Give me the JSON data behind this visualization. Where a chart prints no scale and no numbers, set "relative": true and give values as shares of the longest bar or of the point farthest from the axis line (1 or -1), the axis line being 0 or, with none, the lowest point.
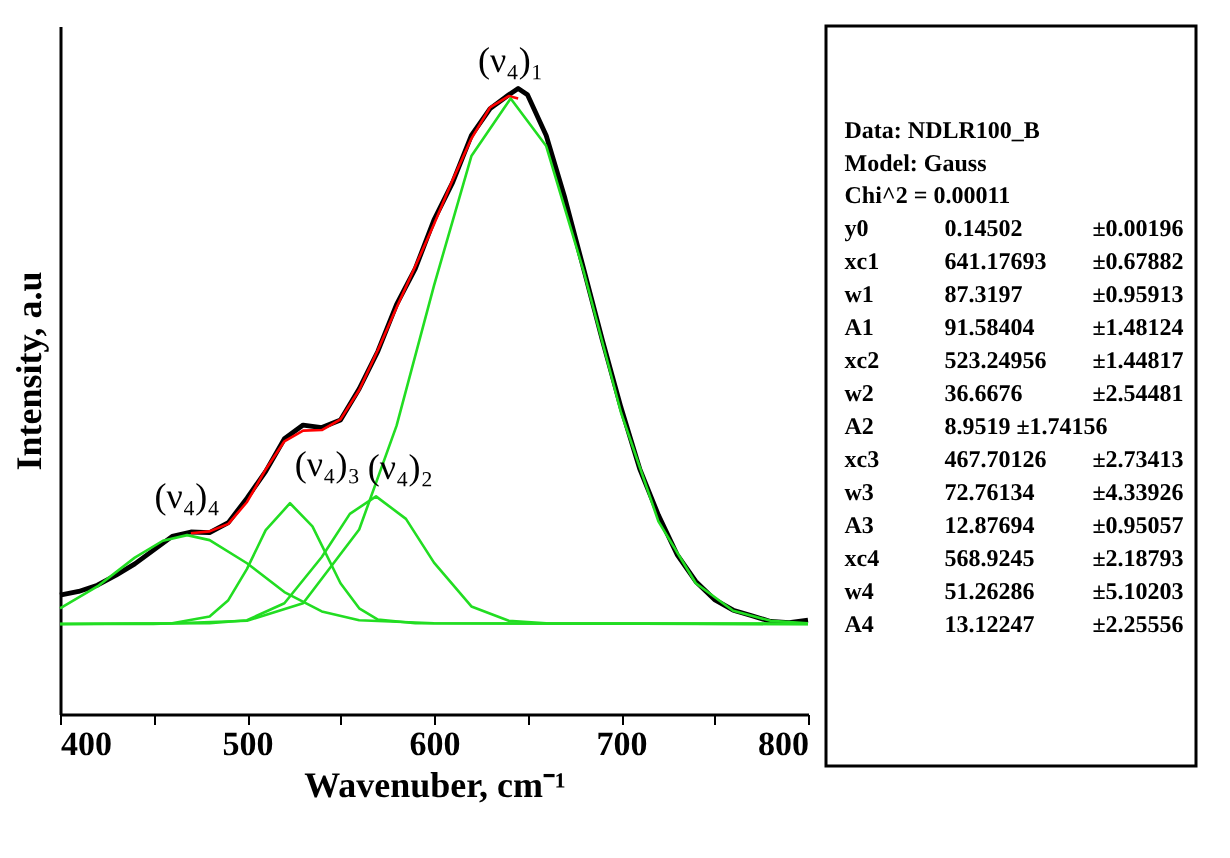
{
  "chart_data": {
    "type": "line",
    "relative": true,
    "xlabel": "Wavenuber, cm⁻¹",
    "ylabel": "Intensity, a.u",
    "grid": false,
    "marker": "none",
    "line_style": "solid",
    "xlim": [
      400,
      800
    ],
    "xticks": [
      400,
      {
        "value": 450,
        "label": null
      },
      500,
      {
        "value": 550,
        "label": null
      },
      600,
      {
        "value": 650,
        "label": null
      },
      700,
      {
        "value": 750,
        "label": null
      },
      800
    ],
    "series": [
      {
        "color": "#000000",
        "x": [
          400,
          410,
          420,
          430,
          440,
          450,
          460,
          470,
          480,
          490,
          500,
          510,
          520,
          530,
          540,
          550,
          560,
          570,
          580,
          590,
          600,
          610,
          620,
          630,
          640,
          645,
          650,
          660,
          670,
          680,
          690,
          700,
          710,
          720,
          730,
          740,
          750,
          760,
          770,
          780,
          790,
          800
        ],
        "values": [
          0.19,
          0.196,
          0.206,
          0.222,
          0.24,
          0.262,
          0.284,
          0.291,
          0.29,
          0.306,
          0.345,
          0.388,
          0.44,
          0.462,
          0.458,
          0.47,
          0.52,
          0.58,
          0.655,
          0.712,
          0.79,
          0.85,
          0.925,
          0.968,
          0.99,
          1.0,
          0.99,
          0.925,
          0.825,
          0.712,
          0.598,
          0.49,
          0.392,
          0.318,
          0.255,
          0.212,
          0.183,
          0.166,
          0.157,
          0.148,
          0.146,
          0.15
        ]
      },
      {
        "color": "#ff0000",
        "x": [
          470,
          480,
          490,
          500,
          510,
          520,
          530,
          540,
          550,
          560,
          570,
          580,
          590,
          600,
          610,
          620,
          630,
          640,
          645
        ],
        "values": [
          0.289,
          0.292,
          0.304,
          0.339,
          0.391,
          0.436,
          0.453,
          0.454,
          0.471,
          0.518,
          0.582,
          0.65,
          0.716,
          0.783,
          0.854,
          0.92,
          0.97,
          0.988,
          0.984
        ]
      },
      {
        "name": "(ν₄)₁",
        "color": "#22dd22",
        "x": [
          400,
          450,
          500,
          530,
          560,
          580,
          600,
          620,
          641,
          660,
          680,
          700,
          720,
          740,
          760,
          780,
          800
        ],
        "values": [
          0.144,
          0.144,
          0.149,
          0.177,
          0.295,
          0.461,
          0.685,
          0.892,
          0.984,
          0.908,
          0.708,
          0.482,
          0.308,
          0.209,
          0.165,
          0.149,
          0.145
        ]
      },
      {
        "name": "(ν₄)₃",
        "color": "#22dd22",
        "x": [
          400,
          460,
          480,
          490,
          500,
          510,
          523,
          535,
          550,
          560,
          570,
          590,
          800
        ],
        "values": [
          0.144,
          0.145,
          0.156,
          0.182,
          0.232,
          0.294,
          0.337,
          0.3,
          0.209,
          0.169,
          0.151,
          0.145,
          0.144
        ]
      },
      {
        "name": "(ν₄)₂",
        "color": "#22dd22",
        "x": [
          400,
          480,
          500,
          520,
          540,
          555,
          569,
          585,
          600,
          620,
          640,
          660,
          800
        ],
        "values": [
          0.144,
          0.145,
          0.15,
          0.177,
          0.251,
          0.32,
          0.348,
          0.312,
          0.242,
          0.172,
          0.149,
          0.145,
          0.144
        ]
      },
      {
        "name": "(ν₄)₄",
        "color": "#22dd22",
        "x": [
          400,
          420,
          440,
          455,
          468,
          480,
          500,
          520,
          540,
          560,
          600,
          800
        ],
        "values": [
          0.169,
          0.204,
          0.25,
          0.277,
          0.286,
          0.278,
          0.241,
          0.195,
          0.164,
          0.15,
          0.145,
          0.144
        ]
      }
    ],
    "annotations": [
      "Data: NDLR100_B",
      "Model: Gauss",
      "Chi^2 = 0.00011",
      "y0\t0.14502\t±0.00196",
      "xc1\t641.17693\t±0.67882",
      "w1\t87.3197\t±0.95913",
      "A1\t91.58404\t±1.48124",
      "xc2\t523.24956\t±1.44817",
      "w2\t36.6676\t±2.54481",
      "A2\t8.9519 ±1.74156",
      "xc3\t467.70126\t±2.73413",
      "w3\t72.76134\t±4.33926",
      "A3\t12.87694\t±0.95057",
      "xc4\t568.9245\t±2.18793",
      "w4\t51.26286\t±5.10203",
      "A4\t13.12247\t±2.25556"
    ]
  }
}
